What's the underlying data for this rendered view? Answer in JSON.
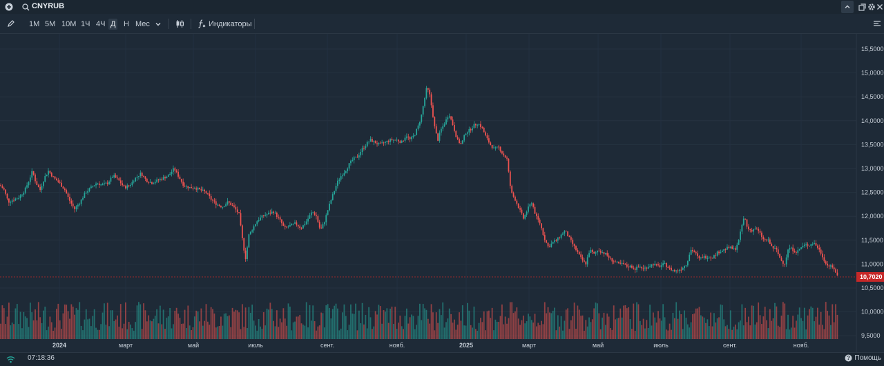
{
  "header": {
    "symbol": "CNYRUB",
    "icons": [
      "plus-circle-icon",
      "search-icon",
      "chevron-up-icon",
      "popout-icon",
      "gear-icon",
      "close-icon"
    ]
  },
  "toolbar": {
    "timeframes": [
      "1М",
      "5М",
      "10М",
      "1Ч",
      "4Ч",
      "Д",
      "Н",
      "Мес"
    ],
    "active_timeframe": "Д",
    "indicators_label": "Индикаторы"
  },
  "colors": {
    "up": "#26a69a",
    "down": "#ef5350",
    "background": "#1e2a37",
    "price_label": "#c62828"
  },
  "chart_data": {
    "type": "candlestick",
    "symbol": "CNYRUB",
    "y_ticks": [
      "15,5000",
      "15,0000",
      "14,5000",
      "14,0000",
      "13,5000",
      "13,0000",
      "12,5000",
      "12,0000",
      "11,5000",
      "11,0000",
      "10,5000",
      "10,0000",
      "9,5000"
    ],
    "ylim": [
      9.42,
      15.6
    ],
    "last_price": "10,7020",
    "x_labels": [
      {
        "label": "2024",
        "bold": true
      },
      {
        "label": "март",
        "bold": false
      },
      {
        "label": "май",
        "bold": false
      },
      {
        "label": "июль",
        "bold": false
      },
      {
        "label": "сент.",
        "bold": false
      },
      {
        "label": "нояб.",
        "bold": false
      },
      {
        "label": "2025",
        "bold": true
      },
      {
        "label": "март",
        "bold": false
      },
      {
        "label": "май",
        "bold": false
      },
      {
        "label": "июль",
        "bold": false
      },
      {
        "label": "сент.",
        "bold": false
      },
      {
        "label": "нояб.",
        "bold": false
      }
    ],
    "close_path": [
      [
        0,
        12.65
      ],
      [
        6,
        12.55
      ],
      [
        12,
        12.3
      ],
      [
        20,
        12.35
      ],
      [
        28,
        12.4
      ],
      [
        36,
        12.55
      ],
      [
        42,
        12.75
      ],
      [
        47,
        12.95
      ],
      [
        52,
        12.7
      ],
      [
        58,
        12.55
      ],
      [
        64,
        12.8
      ],
      [
        70,
        12.95
      ],
      [
        78,
        12.8
      ],
      [
        86,
        12.7
      ],
      [
        94,
        12.55
      ],
      [
        100,
        12.35
      ],
      [
        108,
        12.15
      ],
      [
        116,
        12.3
      ],
      [
        124,
        12.5
      ],
      [
        132,
        12.6
      ],
      [
        140,
        12.7
      ],
      [
        148,
        12.65
      ],
      [
        156,
        12.7
      ],
      [
        164,
        12.85
      ],
      [
        172,
        12.75
      ],
      [
        180,
        12.6
      ],
      [
        188,
        12.65
      ],
      [
        196,
        12.8
      ],
      [
        204,
        12.9
      ],
      [
        212,
        12.75
      ],
      [
        220,
        12.7
      ],
      [
        228,
        12.75
      ],
      [
        236,
        12.8
      ],
      [
        244,
        12.85
      ],
      [
        252,
        13.0
      ],
      [
        258,
        12.85
      ],
      [
        266,
        12.65
      ],
      [
        274,
        12.6
      ],
      [
        282,
        12.6
      ],
      [
        290,
        12.55
      ],
      [
        298,
        12.5
      ],
      [
        306,
        12.35
      ],
      [
        314,
        12.25
      ],
      [
        322,
        12.2
      ],
      [
        330,
        12.3
      ],
      [
        338,
        12.2
      ],
      [
        346,
        12.05
      ],
      [
        352,
        11.4
      ],
      [
        356,
        11.1
      ],
      [
        360,
        11.6
      ],
      [
        366,
        11.75
      ],
      [
        372,
        11.9
      ],
      [
        380,
        12.0
      ],
      [
        388,
        12.05
      ],
      [
        396,
        12.1
      ],
      [
        404,
        11.95
      ],
      [
        412,
        11.75
      ],
      [
        420,
        11.8
      ],
      [
        428,
        11.85
      ],
      [
        436,
        11.75
      ],
      [
        444,
        11.9
      ],
      [
        452,
        12.1
      ],
      [
        458,
        12.0
      ],
      [
        464,
        11.7
      ],
      [
        470,
        11.9
      ],
      [
        476,
        12.2
      ],
      [
        482,
        12.45
      ],
      [
        488,
        12.7
      ],
      [
        494,
        12.85
      ],
      [
        500,
        12.95
      ],
      [
        506,
        13.1
      ],
      [
        512,
        13.2
      ],
      [
        518,
        13.25
      ],
      [
        524,
        13.4
      ],
      [
        530,
        13.5
      ],
      [
        536,
        13.6
      ],
      [
        542,
        13.55
      ],
      [
        550,
        13.5
      ],
      [
        558,
        13.55
      ],
      [
        566,
        13.6
      ],
      [
        574,
        13.6
      ],
      [
        582,
        13.55
      ],
      [
        588,
        13.7
      ],
      [
        594,
        13.6
      ],
      [
        600,
        13.7
      ],
      [
        606,
        13.9
      ],
      [
        610,
        14.1
      ],
      [
        614,
        14.4
      ],
      [
        618,
        14.7
      ],
      [
        622,
        14.55
      ],
      [
        626,
        14.2
      ],
      [
        630,
        13.8
      ],
      [
        634,
        13.6
      ],
      [
        638,
        13.8
      ],
      [
        644,
        13.95
      ],
      [
        650,
        14.15
      ],
      [
        656,
        13.9
      ],
      [
        662,
        13.6
      ],
      [
        668,
        13.5
      ],
      [
        674,
        13.75
      ],
      [
        680,
        13.8
      ],
      [
        686,
        13.9
      ],
      [
        692,
        13.95
      ],
      [
        698,
        13.85
      ],
      [
        704,
        13.65
      ],
      [
        710,
        13.5
      ],
      [
        716,
        13.4
      ],
      [
        722,
        13.45
      ],
      [
        728,
        13.3
      ],
      [
        734,
        13.2
      ],
      [
        740,
        12.5
      ],
      [
        746,
        12.35
      ],
      [
        752,
        12.15
      ],
      [
        758,
        11.95
      ],
      [
        764,
        12.15
      ],
      [
        770,
        12.3
      ],
      [
        776,
        12.0
      ],
      [
        782,
        11.85
      ],
      [
        788,
        11.55
      ],
      [
        794,
        11.35
      ],
      [
        800,
        11.45
      ],
      [
        806,
        11.5
      ],
      [
        812,
        11.6
      ],
      [
        818,
        11.7
      ],
      [
        824,
        11.55
      ],
      [
        830,
        11.4
      ],
      [
        836,
        11.25
      ],
      [
        842,
        11.1
      ],
      [
        848,
        11.0
      ],
      [
        854,
        11.3
      ],
      [
        860,
        11.2
      ],
      [
        866,
        11.3
      ],
      [
        872,
        11.25
      ],
      [
        878,
        11.2
      ],
      [
        884,
        11.1
      ],
      [
        890,
        11.05
      ],
      [
        896,
        11.0
      ],
      [
        902,
        11.0
      ],
      [
        908,
        10.95
      ],
      [
        914,
        10.95
      ],
      [
        920,
        10.9
      ],
      [
        926,
        10.95
      ],
      [
        932,
        10.9
      ],
      [
        938,
        10.95
      ],
      [
        946,
        11.0
      ],
      [
        954,
        10.95
      ],
      [
        962,
        11.0
      ],
      [
        970,
        10.9
      ],
      [
        978,
        10.85
      ],
      [
        986,
        10.9
      ],
      [
        994,
        11.0
      ],
      [
        1000,
        11.3
      ],
      [
        1006,
        11.25
      ],
      [
        1012,
        11.1
      ],
      [
        1018,
        11.15
      ],
      [
        1024,
        11.15
      ],
      [
        1032,
        11.15
      ],
      [
        1040,
        11.25
      ],
      [
        1048,
        11.3
      ],
      [
        1056,
        11.35
      ],
      [
        1064,
        11.3
      ],
      [
        1070,
        11.5
      ],
      [
        1074,
        11.8
      ],
      [
        1078,
        12.0
      ],
      [
        1082,
        11.75
      ],
      [
        1088,
        11.7
      ],
      [
        1094,
        11.75
      ],
      [
        1100,
        11.65
      ],
      [
        1106,
        11.5
      ],
      [
        1112,
        11.5
      ],
      [
        1118,
        11.35
      ],
      [
        1124,
        11.3
      ],
      [
        1130,
        11.1
      ],
      [
        1136,
        11.0
      ],
      [
        1142,
        11.35
      ],
      [
        1148,
        11.3
      ],
      [
        1154,
        11.25
      ],
      [
        1160,
        11.35
      ],
      [
        1166,
        11.4
      ],
      [
        1172,
        11.4
      ],
      [
        1178,
        11.45
      ],
      [
        1184,
        11.35
      ],
      [
        1190,
        11.2
      ],
      [
        1196,
        11.0
      ],
      [
        1202,
        10.95
      ],
      [
        1208,
        10.9
      ],
      [
        1214,
        10.7
      ]
    ]
  },
  "status": {
    "time": "07:18:36",
    "help_label": "Помощь"
  }
}
